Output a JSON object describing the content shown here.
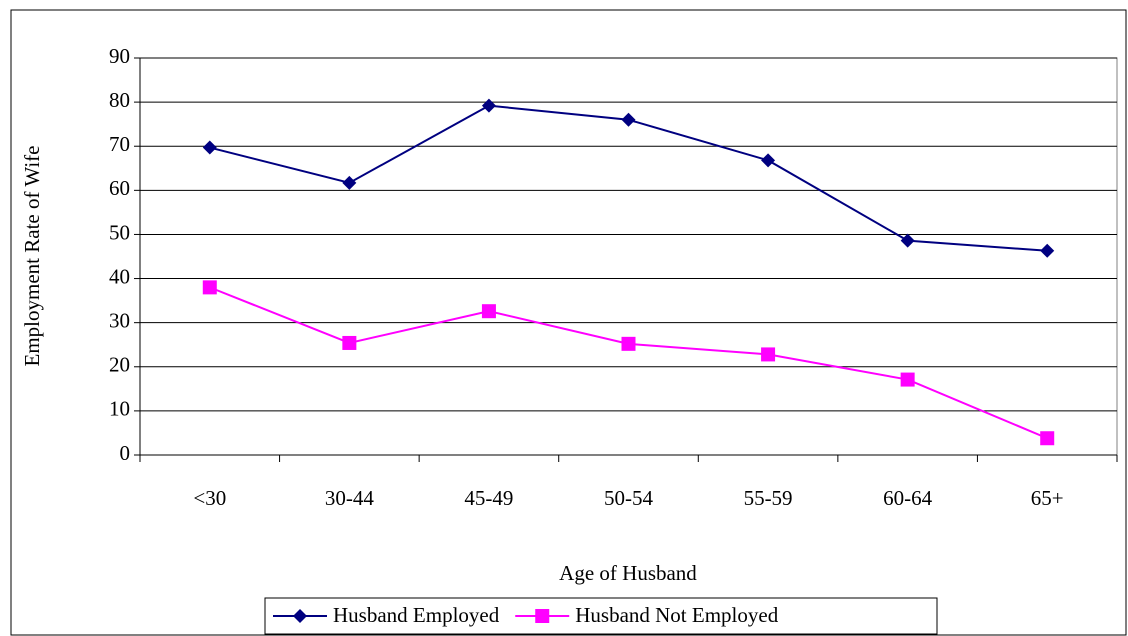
{
  "chart_data": {
    "type": "line",
    "x_label": "Age of Husband",
    "y_label": "Employment Rate of Wife",
    "categories": [
      "<30",
      "30-44",
      "45-49",
      "50-54",
      "55-59",
      "60-64",
      "65+"
    ],
    "series": [
      {
        "name": "Husband Employed",
        "color": "#000080",
        "marker": "diamond",
        "values": [
          69.7,
          61.7,
          79.2,
          76.0,
          66.8,
          48.6,
          46.3
        ]
      },
      {
        "name": "Husband Not Employed",
        "color": "#ff00ff",
        "marker": "square",
        "values": [
          38.0,
          25.4,
          32.6,
          25.2,
          22.8,
          17.1,
          3.8
        ]
      }
    ],
    "ylim": [
      0,
      90
    ],
    "yticks": [
      0,
      10,
      20,
      30,
      40,
      50,
      60,
      70,
      80,
      90
    ],
    "grid": true,
    "legend": "bottom"
  }
}
